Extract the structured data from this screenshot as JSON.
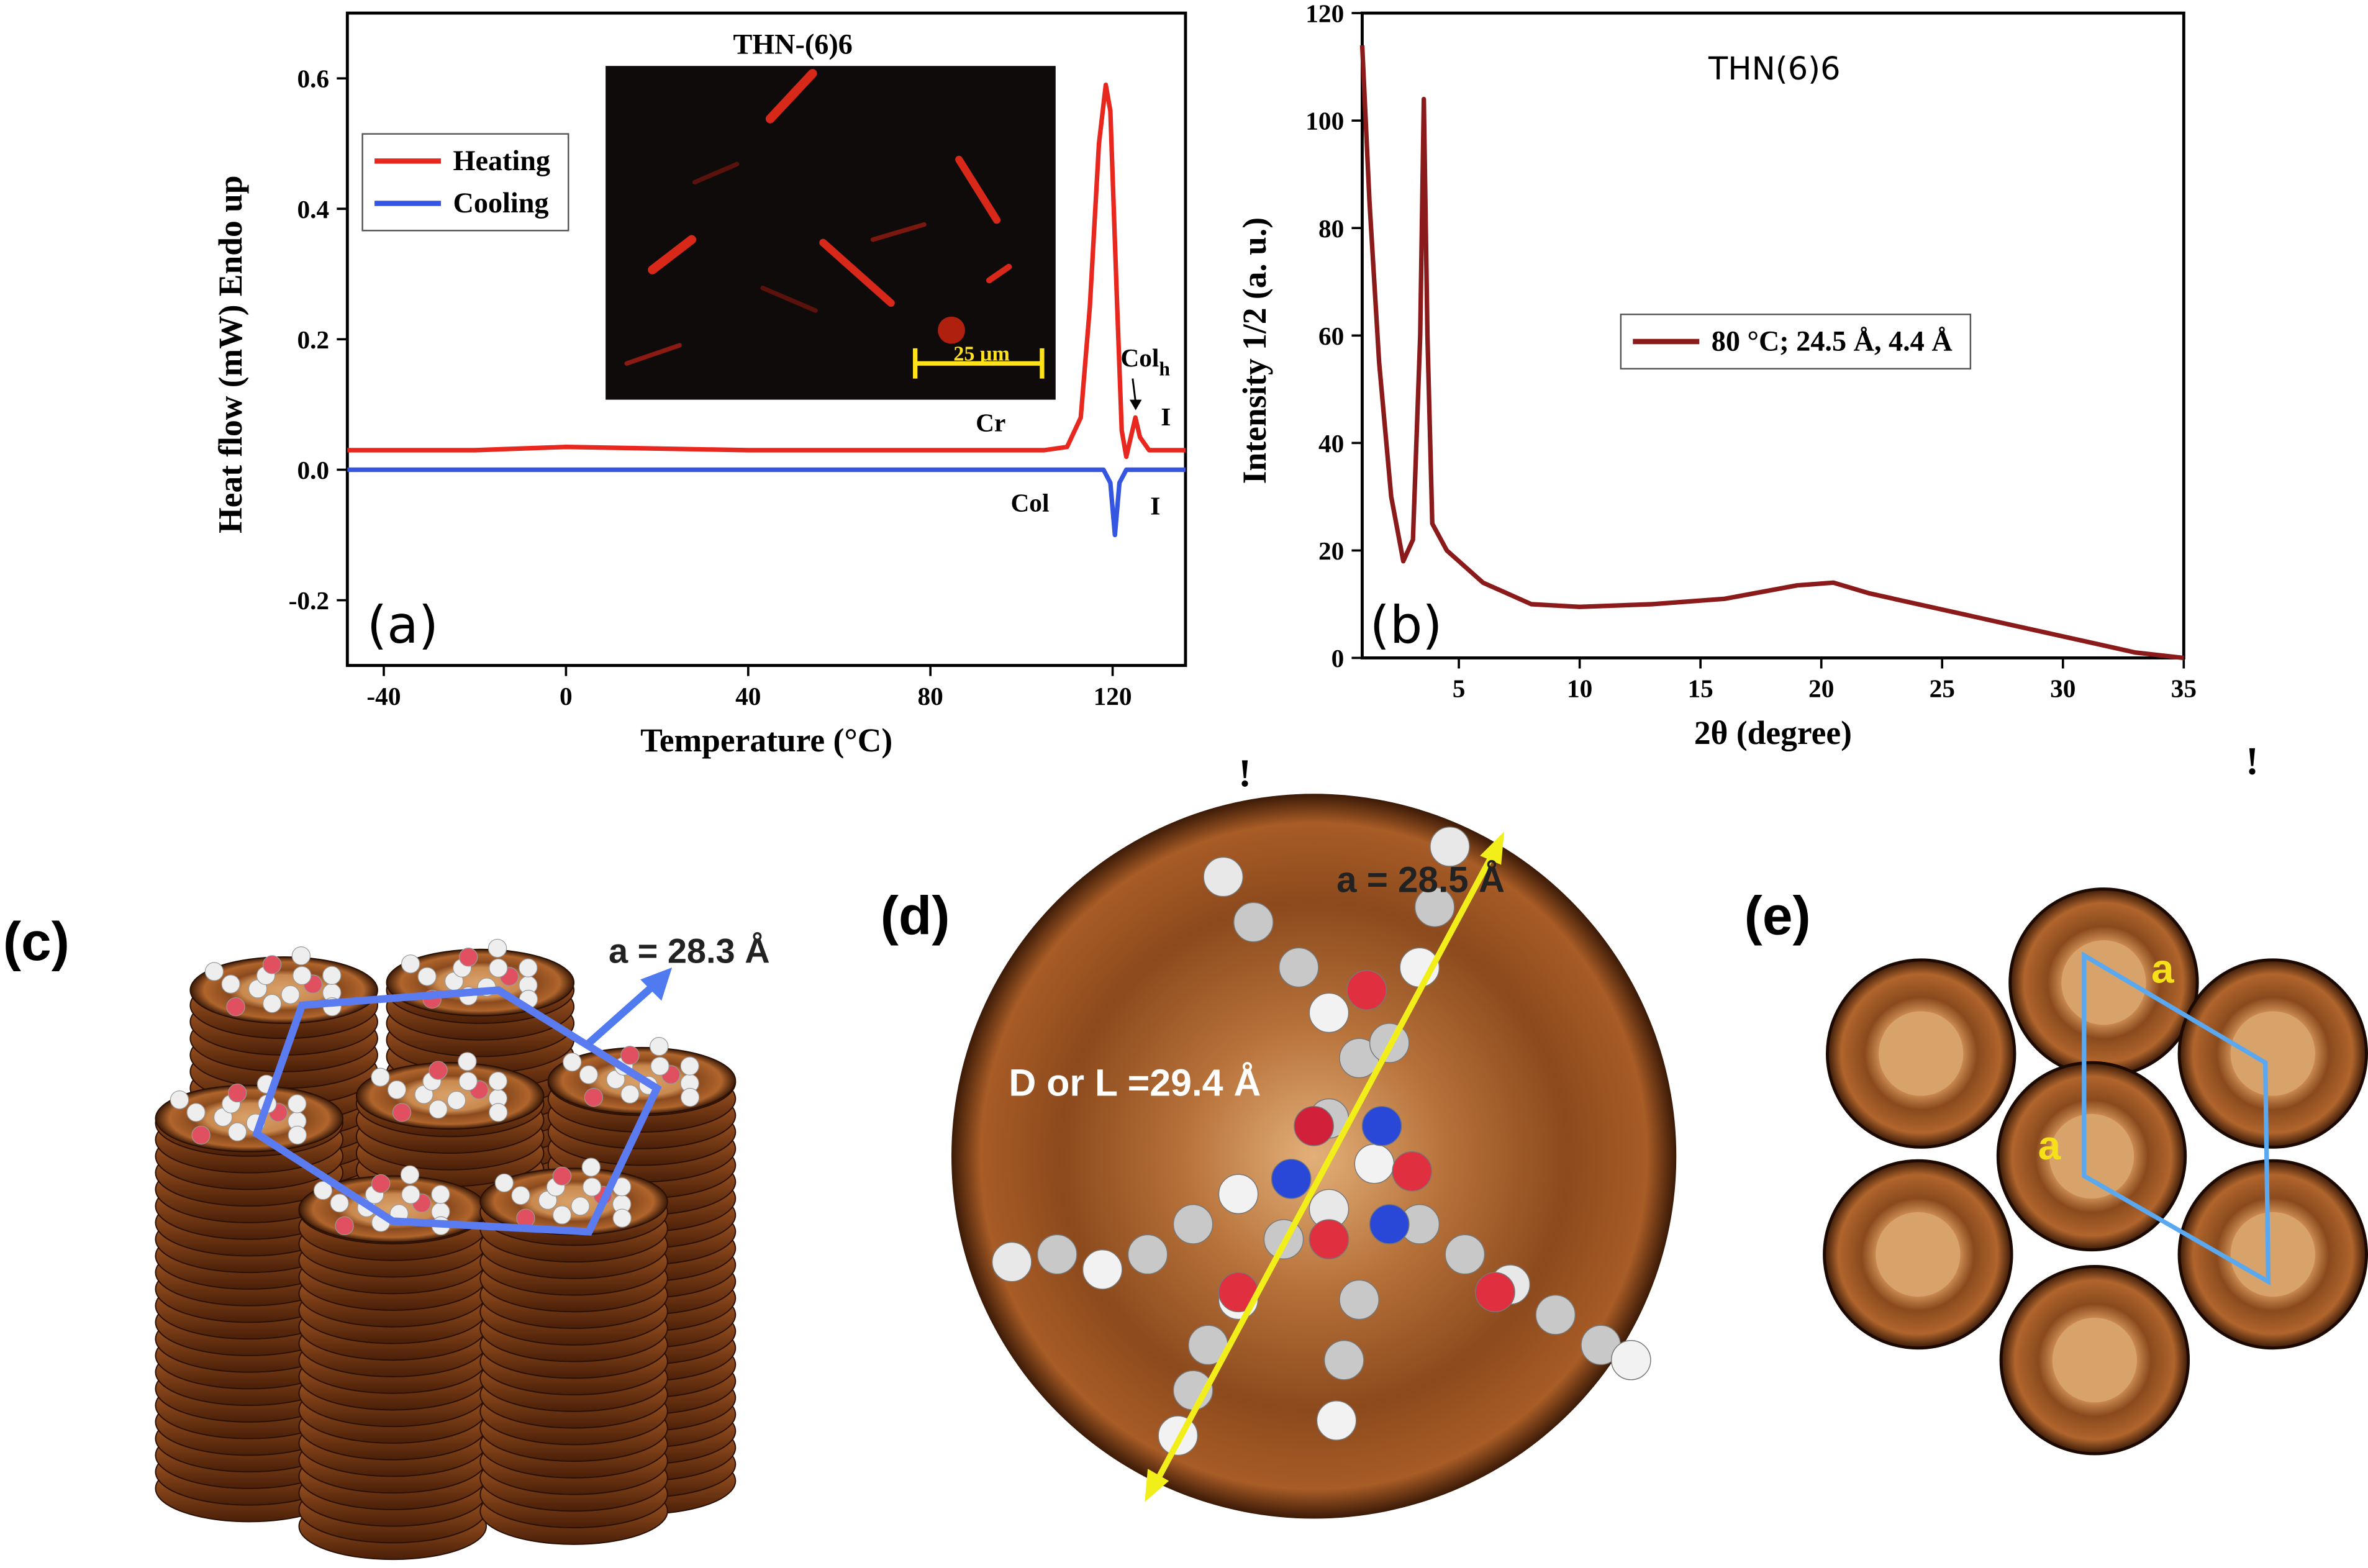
{
  "chart_data": [
    {
      "type": "line",
      "xlabel": "Temperature (°C)",
      "ylabel": "Heat flow (mW) Endo up",
      "xlim": [
        -48,
        136
      ],
      "xticks": [
        -40,
        0,
        40,
        80,
        120
      ],
      "ylim": [
        -0.3,
        0.7
      ],
      "yticks": [
        -0.2,
        {
          "value": 0,
          "label": "0.0"
        },
        0.2,
        0.4,
        0.6
      ],
      "legend": "upper left",
      "series": [
        {
          "name": "Heating",
          "color": "#e8281e",
          "x": [
            -48,
            -20,
            0,
            40,
            80,
            105,
            110,
            113,
            115,
            117,
            118.5,
            119.5,
            121,
            122,
            123,
            124,
            125,
            126,
            128,
            136
          ],
          "values": [
            0.03,
            0.03,
            0.035,
            0.03,
            0.03,
            0.03,
            0.035,
            0.08,
            0.25,
            0.5,
            0.59,
            0.55,
            0.25,
            0.06,
            0.02,
            0.05,
            0.08,
            0.05,
            0.03,
            0.03
          ]
        },
        {
          "name": "Cooling",
          "color": "#3556e0",
          "x": [
            -48,
            0,
            80,
            118,
            119.5,
            120.5,
            121.5,
            123,
            136
          ],
          "values": [
            0.0,
            0.0,
            0.0,
            0.0,
            -0.02,
            -0.1,
            -0.02,
            0.0,
            0.0
          ]
        }
      ],
      "inset_title": "THN-(6)6",
      "scale_bar": "25 µm",
      "annotations": [
        "Cr",
        "Col",
        "I",
        "I",
        "(a)"
      ],
      "transition_label": {
        "text": "Col",
        "subscript": "h"
      }
    },
    {
      "type": "line",
      "title": "THN(6)6",
      "xlabel": "2θ (degree)",
      "ylabel": "Intensity 1/2 (a. u.)",
      "xlim": [
        1,
        35
      ],
      "xticks": [
        5,
        10,
        15,
        20,
        25,
        30,
        35
      ],
      "ylim": [
        0,
        120
      ],
      "yticks": [
        0,
        20,
        40,
        60,
        80,
        100,
        120
      ],
      "legend": "center",
      "series": [
        {
          "name": "80 °C; 24.5 Å, 4.4 Å",
          "color": "#8b1a1a",
          "x": [
            1,
            1.3,
            1.7,
            2.2,
            2.7,
            3.1,
            3.4,
            3.55,
            3.7,
            3.9,
            4.5,
            6,
            8,
            10,
            13,
            16,
            19,
            20.5,
            22,
            25,
            28,
            31,
            33,
            35
          ],
          "values": [
            114,
            85,
            55,
            30,
            18,
            22,
            60,
            104,
            60,
            25,
            20,
            14,
            10,
            9.5,
            10,
            11,
            13.5,
            14,
            12,
            9,
            6,
            3,
            1,
            0
          ]
        }
      ],
      "annotations": [
        "(b)"
      ]
    }
  ],
  "figure": {
    "stray_marks": [
      "!",
      "!"
    ],
    "panel_c": {
      "label": "(c)",
      "lattice": "a = 28.3 Å"
    },
    "panel_d": {
      "label": "(d)",
      "lattice": "a = 28.5 Å",
      "size": "D or L =29.4  Å"
    },
    "panel_e": {
      "label": "(e)",
      "lattice_labels": [
        "a",
        "a"
      ]
    }
  }
}
